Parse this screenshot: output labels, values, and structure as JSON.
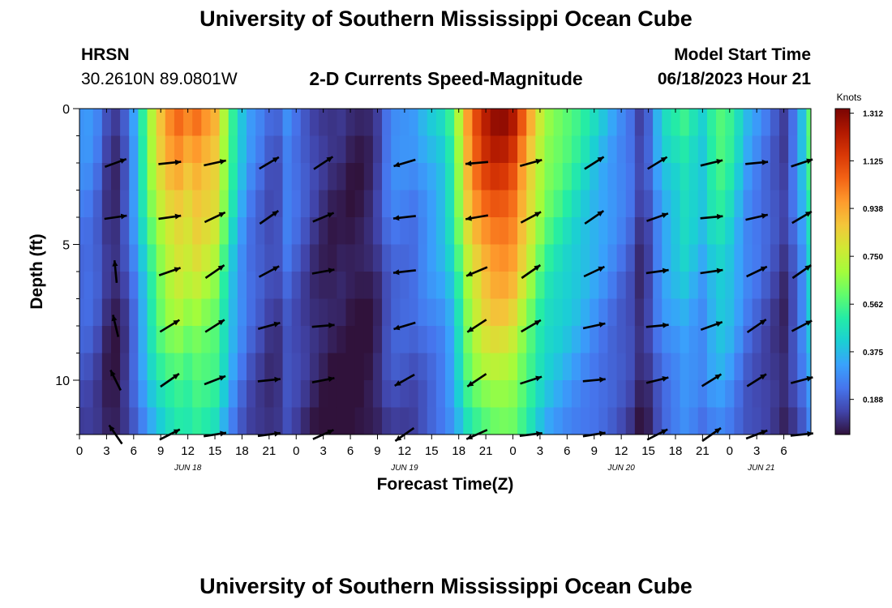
{
  "title_top": "University of Southern Mississippi Ocean Cube",
  "title_bottom": "University of Southern Mississippi Ocean Cube",
  "station": "HRSN",
  "coords": "30.2610N  89.0801W",
  "subtitle": "2-D Currents Speed-Magnitude",
  "model_start_label": "Model Start Time",
  "model_start_value": "06/18/2023 Hour 21",
  "chart_data": {
    "type": "heatmap",
    "title": "2-D Currents Speed-Magnitude",
    "xlabel": "Forecast Time(Z)",
    "ylabel": "Depth (ft)",
    "x_range": [
      0,
      81
    ],
    "ylim": [
      0,
      12
    ],
    "y_ticks": [
      "0",
      "5",
      "10"
    ],
    "y_tick_values": [
      0,
      5,
      10
    ],
    "x_tick_labels": [
      "0",
      "3",
      "6",
      "9",
      "12",
      "15",
      "18",
      "21",
      "0",
      "3",
      "6",
      "9",
      "12",
      "15",
      "18",
      "21",
      "0",
      "3",
      "6",
      "9",
      "12",
      "15",
      "18",
      "21",
      "0",
      "3",
      "6"
    ],
    "date_labels": [
      {
        "label": "JUN 18",
        "hour": 12
      },
      {
        "label": "JUN 19",
        "hour": 36
      },
      {
        "label": "JUN 20",
        "hour": 60
      },
      {
        "label": "JUN 21",
        "hour": 75.5
      }
    ],
    "colorbar": {
      "unit": "Knots",
      "ticks": [
        "1.312",
        "1.125",
        "0.938",
        "0.750",
        "0.562",
        "0.375",
        "0.188"
      ],
      "tick_values": [
        1.312,
        1.125,
        0.938,
        0.75,
        0.562,
        0.375,
        0.188
      ],
      "range": [
        0.05,
        1.33
      ]
    },
    "speed_profile_hours": [
      0,
      1,
      2,
      3,
      4,
      5,
      6,
      7,
      8,
      9,
      10,
      11,
      12,
      13,
      14,
      15,
      16,
      17,
      18,
      19,
      20,
      21,
      22,
      23,
      24,
      25,
      26,
      27,
      28,
      29,
      30,
      31,
      32,
      33,
      34,
      35,
      36,
      37,
      38,
      39,
      40,
      41,
      42,
      43,
      44,
      45,
      46,
      47,
      48,
      49,
      50,
      51,
      52,
      53,
      54,
      55,
      56,
      57,
      58,
      59,
      60,
      61,
      62,
      63,
      64,
      65,
      66,
      67,
      68,
      69,
      70,
      71,
      72,
      73,
      74,
      75,
      76,
      77,
      78,
      79,
      80,
      81
    ],
    "speed_profile_surface": [
      0.3,
      0.3,
      0.25,
      0.15,
      0.12,
      0.2,
      0.35,
      0.55,
      0.75,
      0.9,
      1.0,
      1.05,
      1.0,
      1.05,
      1.0,
      0.95,
      0.75,
      0.55,
      0.4,
      0.3,
      0.25,
      0.2,
      0.2,
      0.3,
      0.25,
      0.2,
      0.15,
      0.12,
      0.1,
      0.1,
      0.08,
      0.08,
      0.1,
      0.15,
      0.25,
      0.3,
      0.3,
      0.3,
      0.35,
      0.4,
      0.45,
      0.55,
      0.75,
      1.0,
      1.15,
      1.25,
      1.3,
      1.3,
      1.25,
      1.1,
      0.95,
      0.8,
      0.7,
      0.65,
      0.6,
      0.55,
      0.5,
      0.45,
      0.4,
      0.35,
      0.3,
      0.25,
      0.15,
      0.2,
      0.35,
      0.45,
      0.5,
      0.55,
      0.5,
      0.45,
      0.55,
      0.6,
      0.55,
      0.45,
      0.35,
      0.3,
      0.25,
      0.2,
      0.15,
      0.25,
      0.4,
      0.6
    ],
    "vector_times": [
      4,
      10,
      15,
      21,
      27,
      36,
      44,
      50,
      57,
      64,
      70,
      75,
      80
    ],
    "vector_depths": [
      2,
      4,
      6,
      8,
      10,
      12
    ]
  },
  "colors": {
    "colormap": [
      "#30123b",
      "#4145ab",
      "#4675ed",
      "#39a2fc",
      "#1bcfd4",
      "#24eca6",
      "#61fc6c",
      "#a4fc3b",
      "#d1e834",
      "#f3c63a",
      "#fe9b2d",
      "#f36315",
      "#d93806",
      "#b11901",
      "#7a0403"
    ]
  }
}
